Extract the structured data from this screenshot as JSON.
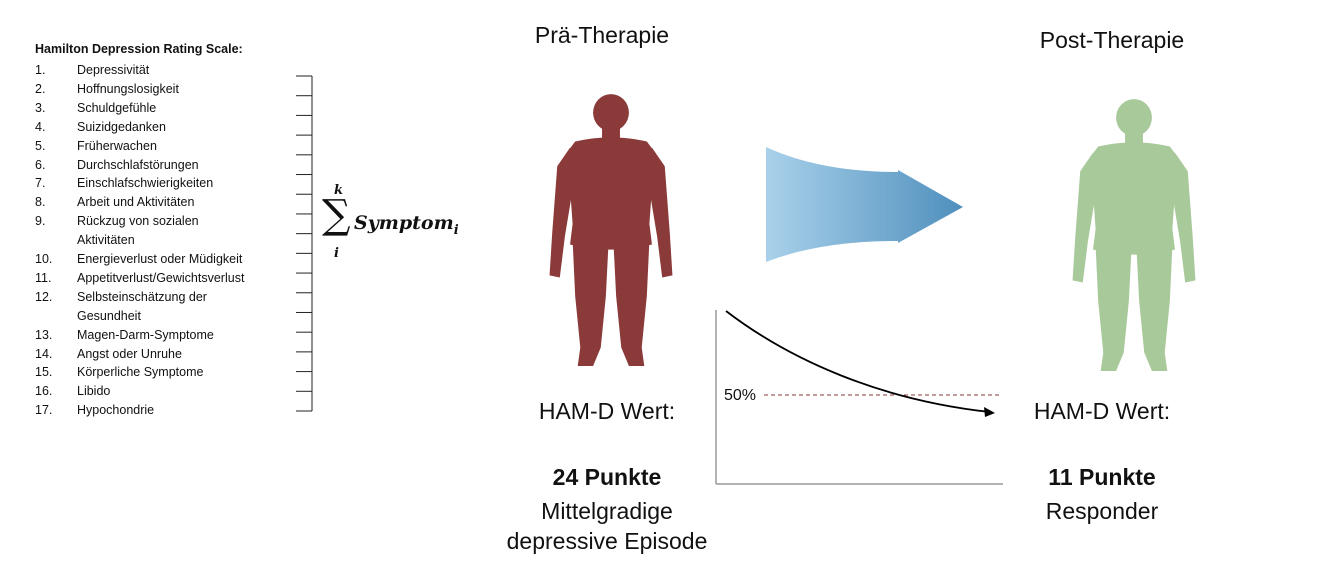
{
  "scale": {
    "title": "Hamilton Depression Rating Scale:",
    "items": [
      {
        "num": "1.",
        "label": "Depressivität"
      },
      {
        "num": "2.",
        "label": "Hoffnungslosigkeit"
      },
      {
        "num": "3.",
        "label": "Schuldgefühle"
      },
      {
        "num": "4.",
        "label": "Suizidgedanken"
      },
      {
        "num": "5.",
        "label": "Früherwachen"
      },
      {
        "num": "6.",
        "label": "Durchschlafstörungen"
      },
      {
        "num": "7.",
        "label": "Einschlafschwierigkeiten"
      },
      {
        "num": "8.",
        "label": "Arbeit und Aktivitäten"
      },
      {
        "num": "9.",
        "label": "Rückzug von sozialen",
        "cont": "Aktivitäten"
      },
      {
        "num": "10.",
        "label": "Energieverlust oder Müdigkeit"
      },
      {
        "num": "11.",
        "label": "Appetitverlust/Gewichtsverlust"
      },
      {
        "num": "12.",
        "label": "Selbsteinschätzung der",
        "cont": "Gesundheit"
      },
      {
        "num": "13.",
        "label": "Magen-Darm-Symptome"
      },
      {
        "num": "14.",
        "label": "Angst oder Unruhe"
      },
      {
        "num": "15.",
        "label": "Körperliche Symptome"
      },
      {
        "num": "16.",
        "label": "Libido"
      },
      {
        "num": "17.",
        "label": "Hypochondrie"
      }
    ]
  },
  "formula": {
    "sigma": "∑",
    "upper": "k",
    "lower": "i",
    "term": "Symptom",
    "subscript": "i"
  },
  "pre": {
    "heading": "Prä-Therapie",
    "ham_label": "HAM-D Wert:",
    "points": "24 Punkte",
    "category_line1": "Mittelgradige",
    "category_line2": "depressive Episode",
    "figure_color": "#8b3a3a"
  },
  "post": {
    "heading": "Post-Therapie",
    "ham_label": "HAM-D Wert:",
    "points": "11 Punkte",
    "category": "Responder",
    "figure_color": "#a8c99a"
  },
  "chart": {
    "threshold_label": "50%",
    "threshold_color": "#8b3a3a"
  },
  "arrow": {
    "color_light": "#a9d1ea",
    "color_dark": "#4f8fbd"
  }
}
